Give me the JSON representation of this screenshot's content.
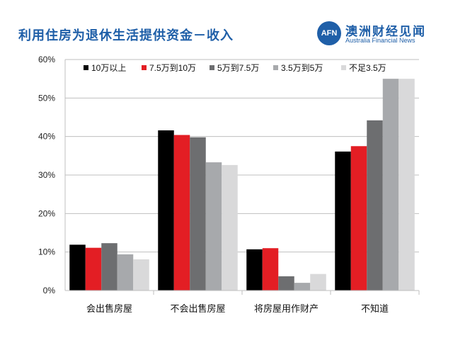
{
  "header": {
    "title": "利用住房为退休生活提供资金－收入",
    "logo_mark": "AFN",
    "logo_cn": "澳洲财经见闻",
    "logo_en": "Australia Financial News"
  },
  "colors": {
    "title": "#1f5fa8",
    "series": [
      "#000000",
      "#e31e24",
      "#6d6e70",
      "#a7a9ac",
      "#d9d9da"
    ]
  },
  "chart_data": {
    "type": "bar",
    "title": "",
    "xlabel": "",
    "ylabel": "",
    "categories": [
      "会出售房屋",
      "不会出售房屋",
      "将房屋用作财产",
      "不知道"
    ],
    "series": [
      {
        "name": "10万以上",
        "values": [
          11.9,
          41.6,
          10.7,
          36.1
        ]
      },
      {
        "name": "7.5万到10万",
        "values": [
          11.1,
          40.4,
          11.0,
          37.5
        ]
      },
      {
        "name": "5万到7.5万",
        "values": [
          12.3,
          39.8,
          3.7,
          44.2
        ]
      },
      {
        "name": "3.5万到5万",
        "values": [
          9.4,
          33.3,
          2.0,
          55.0
        ]
      },
      {
        "name": "不足3.5万",
        "values": [
          8.1,
          32.6,
          4.3,
          55.0
        ]
      }
    ],
    "ylim": [
      0,
      60
    ],
    "yticks": [
      "0%",
      "10%",
      "20%",
      "30%",
      "40%",
      "50%",
      "60%"
    ],
    "grid": true,
    "legend": "top"
  }
}
